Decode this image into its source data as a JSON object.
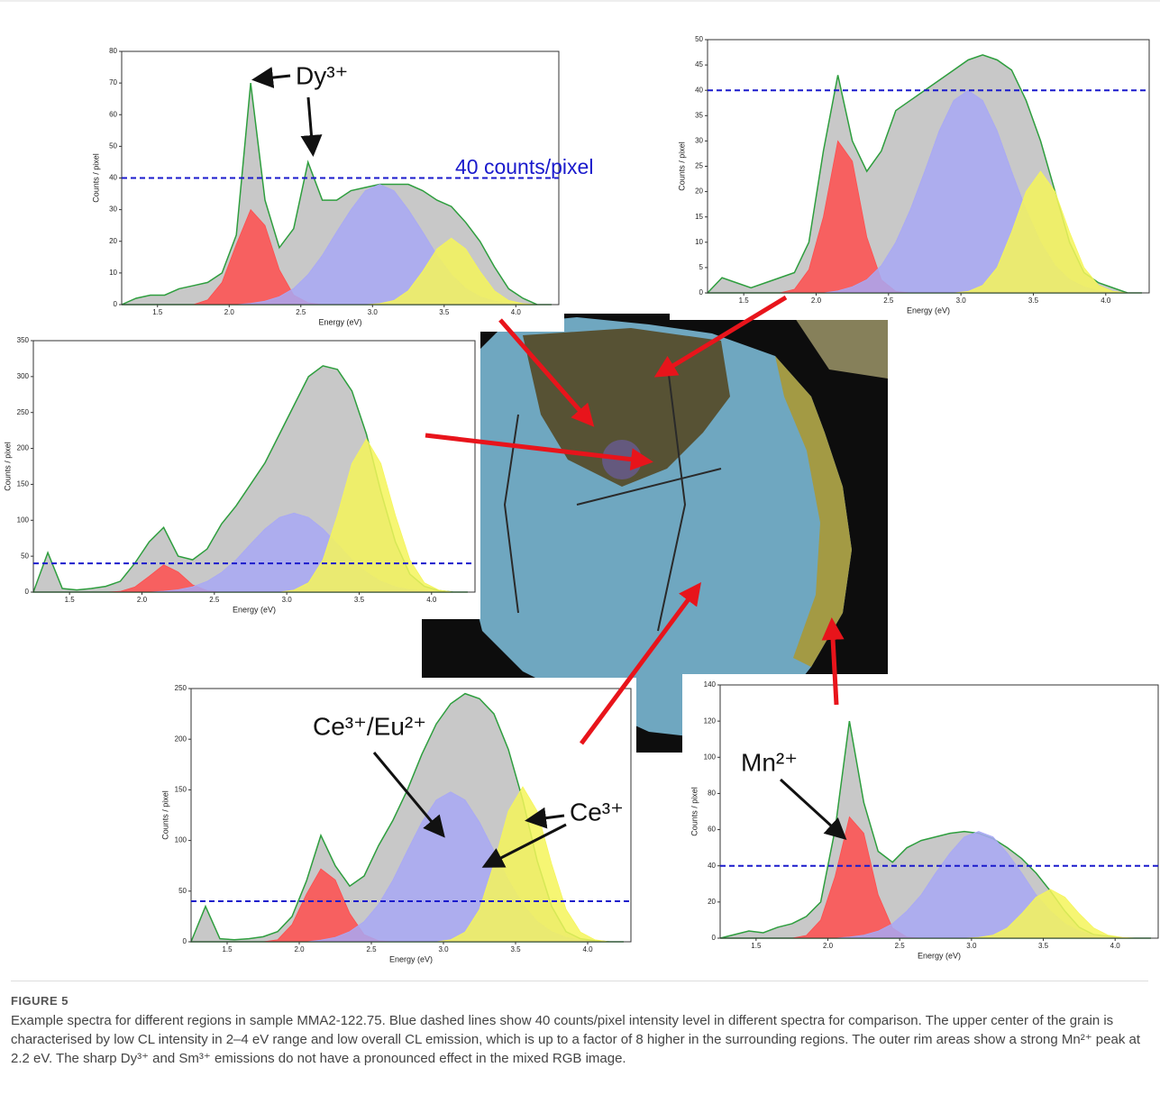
{
  "chart_data": [
    {
      "type": "area",
      "x": [
        1.25,
        1.35,
        1.45,
        1.55,
        1.65,
        1.75,
        1.85,
        1.95,
        2.05,
        2.15,
        2.25,
        2.35,
        2.45,
        2.55,
        2.65,
        2.75,
        2.85,
        2.95,
        3.05,
        3.15,
        3.25,
        3.35,
        3.45,
        3.55,
        3.65,
        3.75,
        3.85,
        3.95,
        4.05,
        4.15,
        4.25
      ],
      "xlim": [
        1.25,
        4.3
      ],
      "xticks": [
        1.5,
        {
          "value": 2,
          "label": "2.0"
        },
        2.5,
        {
          "value": 3,
          "label": "3.0"
        },
        3.5,
        {
          "value": 4,
          "label": "4.0"
        }
      ],
      "ylim": [
        0,
        80
      ],
      "yticks": [
        0,
        10,
        20,
        30,
        40,
        50,
        60,
        70,
        80
      ],
      "xlabel": "Energy (eV)",
      "ylabel": "Counts / pixel",
      "line_color": "#2e9e3e",
      "reference_line": {
        "value": 40,
        "color": "#1a1acc"
      },
      "annotations": [
        {
          "text": "Dy³⁺",
          "color": "#111111"
        },
        {
          "text": "40 counts/pixel",
          "color": "#1a1acc"
        }
      ],
      "series": [
        {
          "color": "#c8c8c8",
          "values": [
            0,
            2,
            3,
            3,
            5,
            6,
            7,
            10,
            22,
            70,
            33,
            18,
            24,
            45,
            33,
            33,
            36,
            37,
            38,
            38,
            38,
            36,
            33,
            31,
            26,
            20,
            12,
            5,
            2,
            0,
            0
          ]
        },
        {
          "color": "#ff4d4d",
          "values": [
            0,
            0,
            0,
            0,
            0,
            0,
            1.5,
            7,
            19,
            30,
            25,
            11,
            3,
            0.6,
            0,
            0,
            0,
            0,
            0,
            0,
            0,
            0,
            0,
            0,
            0,
            0,
            0,
            0,
            0,
            0,
            0
          ]
        },
        {
          "color": "#a8a8f5",
          "values": [
            0,
            0,
            0,
            0,
            0,
            0,
            0,
            0,
            0,
            0.4,
            1.1,
            2.5,
            5.1,
            9.5,
            15.6,
            23,
            30,
            36,
            38,
            36,
            30,
            23,
            15.6,
            9.5,
            5.1,
            2.5,
            1.1,
            0.4,
            0,
            0,
            0
          ]
        },
        {
          "color": "#f5f55a",
          "values": [
            0,
            0,
            0,
            0,
            0,
            0,
            0,
            0,
            0,
            0,
            0,
            0,
            0,
            0,
            0,
            0,
            0,
            0,
            0.3,
            1.3,
            4.4,
            10.5,
            17.6,
            21,
            17.6,
            10.5,
            4.4,
            1.3,
            0.3,
            0,
            0
          ]
        }
      ]
    },
    {
      "type": "area",
      "x": [
        1.25,
        1.35,
        1.45,
        1.55,
        1.65,
        1.75,
        1.85,
        1.95,
        2.05,
        2.15,
        2.25,
        2.35,
        2.45,
        2.55,
        2.65,
        2.75,
        2.85,
        2.95,
        3.05,
        3.15,
        3.25,
        3.35,
        3.45,
        3.55,
        3.65,
        3.75,
        3.85,
        3.95,
        4.05,
        4.15,
        4.25
      ],
      "xlim": [
        1.25,
        4.3
      ],
      "xticks": [
        1.5,
        {
          "value": 2,
          "label": "2.0"
        },
        2.5,
        {
          "value": 3,
          "label": "3.0"
        },
        3.5,
        {
          "value": 4,
          "label": "4.0"
        }
      ],
      "ylim": [
        0,
        50
      ],
      "yticks": [
        0,
        5,
        10,
        15,
        20,
        25,
        30,
        35,
        40,
        45,
        50
      ],
      "xlabel": "Energy (eV)",
      "ylabel": "Counts / pixel",
      "line_color": "#2e9e3e",
      "reference_line": {
        "value": 40,
        "color": "#1a1acc"
      },
      "annotations": [],
      "series": [
        {
          "color": "#c8c8c8",
          "values": [
            0,
            3,
            2,
            1,
            2,
            3,
            4,
            10,
            28,
            43,
            30,
            24,
            28,
            36,
            38,
            40,
            42,
            44,
            46,
            47,
            46,
            44,
            38,
            30,
            20,
            10,
            4,
            2,
            1,
            0,
            0
          ]
        },
        {
          "color": "#ff4d4d",
          "values": [
            0,
            0,
            0,
            0,
            0,
            0,
            0.7,
            4.6,
            15,
            30,
            26,
            11,
            2.6,
            0.3,
            0,
            0,
            0,
            0,
            0,
            0,
            0,
            0,
            0,
            0,
            0,
            0,
            0,
            0,
            0,
            0,
            0
          ]
        },
        {
          "color": "#a8a8f5",
          "values": [
            0,
            0,
            0,
            0,
            0,
            0,
            0,
            0,
            0,
            0.4,
            1.2,
            2.6,
            5.4,
            10,
            16.4,
            24,
            32,
            38,
            40,
            38,
            32,
            24,
            16.4,
            10,
            5.4,
            2.6,
            1.2,
            0.4,
            0,
            0,
            0
          ]
        },
        {
          "color": "#f5f55a",
          "values": [
            0,
            0,
            0,
            0,
            0,
            0,
            0,
            0,
            0,
            0,
            0,
            0,
            0,
            0,
            0,
            0,
            0,
            0,
            0.3,
            1.5,
            5,
            12,
            20,
            24,
            20,
            12,
            5,
            1.5,
            0.3,
            0,
            0
          ]
        }
      ]
    },
    {
      "type": "area",
      "x": [
        1.25,
        1.35,
        1.45,
        1.55,
        1.65,
        1.75,
        1.85,
        1.95,
        2.05,
        2.15,
        2.25,
        2.35,
        2.45,
        2.55,
        2.65,
        2.75,
        2.85,
        2.95,
        3.05,
        3.15,
        3.25,
        3.35,
        3.45,
        3.55,
        3.65,
        3.75,
        3.85,
        3.95,
        4.05,
        4.15,
        4.25
      ],
      "xlim": [
        1.25,
        4.3
      ],
      "xticks": [
        1.5,
        {
          "value": 2,
          "label": "2.0"
        },
        2.5,
        {
          "value": 3,
          "label": "3.0"
        },
        3.5,
        {
          "value": 4,
          "label": "4.0"
        }
      ],
      "ylim": [
        0,
        350
      ],
      "yticks": [
        0,
        50,
        100,
        150,
        200,
        250,
        300,
        350
      ],
      "xlabel": "Energy (eV)",
      "ylabel": "Counts / pixel",
      "line_color": "#2e9e3e",
      "reference_line": {
        "value": 40,
        "color": "#1a1acc"
      },
      "annotations": [],
      "series": [
        {
          "color": "#c8c8c8",
          "values": [
            0,
            55,
            5,
            3,
            5,
            8,
            15,
            40,
            70,
            90,
            50,
            45,
            60,
            95,
            120,
            150,
            180,
            220,
            260,
            300,
            315,
            310,
            280,
            220,
            140,
            70,
            25,
            8,
            2,
            0,
            0
          ]
        },
        {
          "color": "#ff4d4d",
          "values": [
            0,
            0,
            0,
            0,
            0,
            0,
            1,
            7,
            22,
            38,
            28,
            10,
            2,
            0,
            0,
            0,
            0,
            0,
            0,
            0,
            0,
            0,
            0,
            0,
            0,
            0,
            0,
            0,
            0,
            0,
            0
          ]
        },
        {
          "color": "#a8a8f5",
          "values": [
            0,
            0,
            0,
            0,
            0,
            0,
            0,
            0,
            0,
            1.2,
            3.2,
            7.3,
            15,
            27.5,
            45,
            67,
            88,
            104,
            110,
            104,
            88,
            67,
            45,
            27.5,
            15,
            7.3,
            3.2,
            1.2,
            0,
            0,
            0
          ]
        },
        {
          "color": "#f5f55a",
          "values": [
            0,
            0,
            0,
            0,
            0,
            0,
            0,
            0,
            0,
            0,
            0,
            0,
            0,
            0,
            0,
            0,
            0,
            0,
            2.8,
            13,
            45,
            107,
            179,
            213,
            179,
            107,
            45,
            13,
            2.8,
            0,
            0
          ]
        }
      ]
    },
    {
      "type": "area",
      "x": [
        1.25,
        1.35,
        1.45,
        1.55,
        1.65,
        1.75,
        1.85,
        1.95,
        2.05,
        2.15,
        2.25,
        2.35,
        2.45,
        2.55,
        2.65,
        2.75,
        2.85,
        2.95,
        3.05,
        3.15,
        3.25,
        3.35,
        3.45,
        3.55,
        3.65,
        3.75,
        3.85,
        3.95,
        4.05,
        4.15,
        4.25
      ],
      "xlim": [
        1.25,
        4.3
      ],
      "xticks": [
        1.5,
        {
          "value": 2,
          "label": "2.0"
        },
        2.5,
        {
          "value": 3,
          "label": "3.0"
        },
        3.5,
        {
          "value": 4,
          "label": "4.0"
        }
      ],
      "ylim": [
        0,
        250
      ],
      "yticks": [
        0,
        50,
        100,
        150,
        200,
        250
      ],
      "xlabel": "Energy (eV)",
      "ylabel": "Counts / pixel",
      "line_color": "#2e9e3e",
      "reference_line": {
        "value": 40,
        "color": "#1a1acc"
      },
      "annotations": [
        {
          "text": "Ce³⁺/Eu²⁺",
          "color": "#111111"
        },
        {
          "text": "Ce³⁺",
          "color": "#111111"
        }
      ],
      "series": [
        {
          "color": "#c8c8c8",
          "values": [
            0,
            35,
            3,
            2,
            3,
            5,
            10,
            25,
            60,
            105,
            75,
            55,
            65,
            95,
            120,
            150,
            185,
            215,
            235,
            245,
            240,
            225,
            190,
            140,
            80,
            35,
            10,
            3,
            1,
            0,
            0
          ]
        },
        {
          "color": "#ff4d4d",
          "values": [
            0,
            0,
            0,
            0,
            0,
            0,
            2,
            17,
            47,
            72,
            61,
            28,
            7,
            1,
            0,
            0,
            0,
            0,
            0,
            0,
            0,
            0,
            0,
            0,
            0,
            0,
            0,
            0,
            0,
            0,
            0
          ]
        },
        {
          "color": "#a8a8f5",
          "values": [
            0,
            0,
            0,
            0,
            0,
            0,
            0,
            0,
            0,
            1.6,
            4.3,
            10,
            20,
            37,
            61,
            90,
            118,
            140,
            148,
            140,
            118,
            90,
            61,
            37,
            20,
            10,
            4.3,
            1.6,
            0,
            0,
            0
          ]
        },
        {
          "color": "#f5f55a",
          "values": [
            0,
            0,
            0,
            0,
            0,
            0,
            0,
            0,
            0,
            0,
            0,
            0,
            0,
            0,
            0,
            0,
            0,
            0,
            2,
            9.6,
            32,
            77,
            129,
            153,
            129,
            77,
            32,
            9.6,
            2,
            0,
            0
          ]
        }
      ]
    },
    {
      "type": "area",
      "x": [
        1.25,
        1.35,
        1.45,
        1.55,
        1.65,
        1.75,
        1.85,
        1.95,
        2.05,
        2.15,
        2.25,
        2.35,
        2.45,
        2.55,
        2.65,
        2.75,
        2.85,
        2.95,
        3.05,
        3.15,
        3.25,
        3.35,
        3.45,
        3.55,
        3.65,
        3.75,
        3.85,
        3.95,
        4.05,
        4.15,
        4.25
      ],
      "xlim": [
        1.25,
        4.3
      ],
      "xticks": [
        1.5,
        {
          "value": 2,
          "label": "2.0"
        },
        2.5,
        {
          "value": 3,
          "label": "3.0"
        },
        3.5,
        {
          "value": 4,
          "label": "4.0"
        }
      ],
      "ylim": [
        0,
        140
      ],
      "yticks": [
        0,
        20,
        40,
        60,
        80,
        100,
        120,
        140
      ],
      "xlabel": "Energy (eV)",
      "ylabel": "Counts / pixel",
      "line_color": "#2e9e3e",
      "reference_line": {
        "value": 40,
        "color": "#1a1acc"
      },
      "annotations": [
        {
          "text": "Mn²⁺",
          "color": "#111111"
        }
      ],
      "series": [
        {
          "color": "#c8c8c8",
          "values": [
            0,
            2,
            4,
            3,
            6,
            8,
            12,
            20,
            60,
            120,
            75,
            48,
            42,
            50,
            54,
            56,
            58,
            59,
            58,
            55,
            50,
            44,
            36,
            26,
            15,
            6,
            2,
            1,
            0,
            0,
            0
          ]
        },
        {
          "color": "#ff4d4d",
          "values": [
            0,
            0,
            0,
            0,
            0,
            0,
            1.5,
            10,
            34,
            67,
            58,
            24,
            5.6,
            0.6,
            0,
            0,
            0,
            0,
            0,
            0,
            0,
            0,
            0,
            0,
            0,
            0,
            0,
            0,
            0,
            0,
            0
          ]
        },
        {
          "color": "#a8a8f5",
          "values": [
            0,
            0,
            0,
            0,
            0,
            0,
            0,
            0,
            0,
            0.6,
            1.7,
            3.9,
            8,
            15,
            24,
            36,
            47,
            56,
            59,
            56,
            47,
            36,
            24,
            15,
            8,
            3.9,
            1.7,
            0.6,
            0,
            0,
            0
          ]
        },
        {
          "color": "#f5f55a",
          "values": [
            0,
            0,
            0,
            0,
            0,
            0,
            0,
            0,
            0,
            0,
            0,
            0,
            0,
            0,
            0,
            0,
            0,
            0,
            0.4,
            1.7,
            5.7,
            13.6,
            22.7,
            27,
            22.7,
            13.6,
            5.7,
            1.7,
            0.4,
            0,
            0
          ]
        }
      ]
    }
  ],
  "caption": {
    "label": "FIGURE 5",
    "text": "Example spectra for different regions in sample MMA2-122.75. Blue dashed lines show 40 counts/pixel intensity level in different spectra for comparison. The upper center of the grain is characterised by low CL intensity in 2–4 eV range and low overall CL emission, which is up to a factor of 8 higher in the surrounding regions. The outer rim areas show a strong Mn²⁺ peak at 2.2 eV. The sharp Dy³⁺ and Sm³⁺ emissions do not have a pronounced effect in the mixed RGB image."
  }
}
